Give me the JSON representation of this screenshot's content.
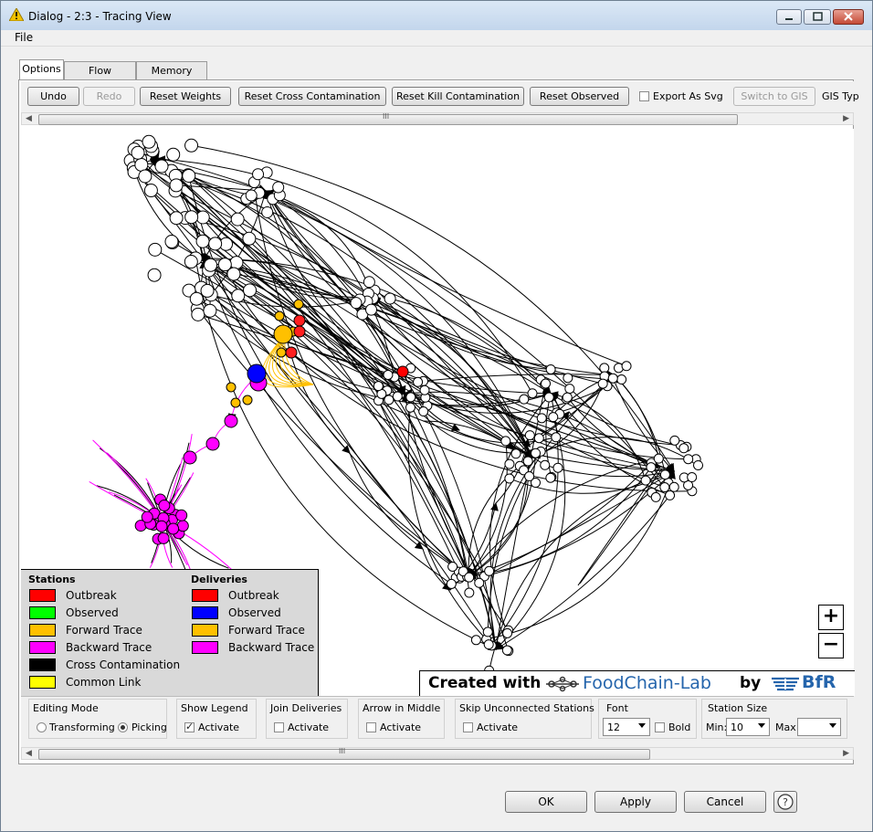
{
  "window": {
    "title": "Dialog - 2:3 - Tracing View"
  },
  "menu": {
    "file": "File"
  },
  "tabs": [
    "Options",
    "Flow Variables",
    "Memory Policy"
  ],
  "toolbar": {
    "undo": "Undo",
    "redo": "Redo",
    "reset_weights": "Reset Weights",
    "reset_cross": "Reset Cross Contamination",
    "reset_kill": "Reset Kill Contamination",
    "reset_observed": "Reset Observed",
    "export_svg": "Export As Svg",
    "export_svg_checked": false,
    "switch_gis": "Switch to GIS",
    "gis_type": "GIS Typ"
  },
  "scroll_grip": "III",
  "legend": {
    "stations_title": "Stations",
    "deliveries_title": "Deliveries",
    "stations": [
      {
        "label": "Outbreak",
        "color": "#ff0000"
      },
      {
        "label": "Observed",
        "color": "#00ff00"
      },
      {
        "label": "Forward Trace",
        "color": "#ffc000"
      },
      {
        "label": "Backward Trace",
        "color": "#ff00ff"
      },
      {
        "label": "Cross Contamination",
        "color": "#000000"
      },
      {
        "label": "Common Link",
        "color": "#ffff00"
      }
    ],
    "deliveries": [
      {
        "label": "Outbreak",
        "color": "#ff0000"
      },
      {
        "label": "Observed",
        "color": "#0000ff"
      },
      {
        "label": "Forward Trace",
        "color": "#ffc000"
      },
      {
        "label": "Backward Trace",
        "color": "#ff00ff"
      }
    ]
  },
  "zoom": {
    "in": "+",
    "out": "−"
  },
  "watermark": {
    "created": "Created with",
    "fcl": "FoodChain-Lab",
    "by": "by",
    "bfr": "BfR"
  },
  "options": {
    "editing_mode": {
      "title": "Editing Mode",
      "transforming": "Transforming",
      "picking": "Picking",
      "selected": "Picking"
    },
    "show_legend": {
      "title": "Show Legend",
      "label": "Activate",
      "checked": true
    },
    "join_deliveries": {
      "title": "Join Deliveries",
      "label": "Activate",
      "checked": false
    },
    "arrow_middle": {
      "title": "Arrow in Middle",
      "label": "Activate",
      "checked": false
    },
    "skip_unconnected": {
      "title": "Skip Unconnected Stations",
      "label": "Activate",
      "checked": false
    },
    "font": {
      "title": "Font",
      "size": "12",
      "bold": "Bold",
      "bold_checked": false
    },
    "station_size": {
      "title": "Station Size",
      "min_label": "Min:",
      "min_value": "10",
      "max_label": "Max:",
      "max_value": ""
    }
  },
  "dialog_buttons": {
    "ok": "OK",
    "apply": "Apply",
    "cancel": "Cancel",
    "help": "?"
  }
}
